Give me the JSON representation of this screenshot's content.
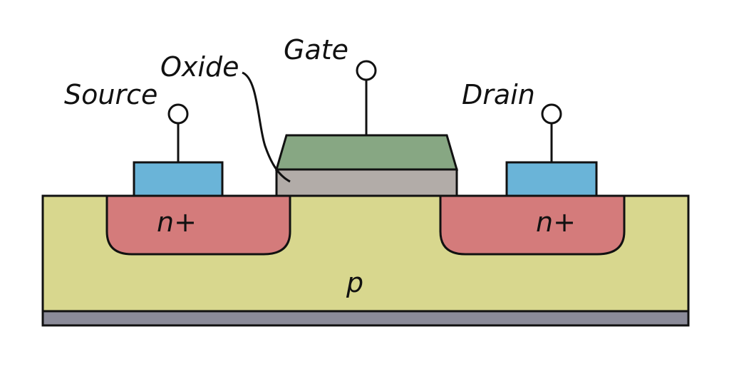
{
  "labels": {
    "source": "Source",
    "gate": "Gate",
    "drain": "Drain",
    "oxide": "Oxide",
    "n_left": "n+",
    "n_right": "n+",
    "p": "p"
  },
  "colors": {
    "substrate": "#d8d78e",
    "n_region": "#d47b7b",
    "contact": "#6ab4d8",
    "oxide": "#b2aca8",
    "gate": "#87a783",
    "base": "#8b8b99",
    "outline": "#111111"
  }
}
